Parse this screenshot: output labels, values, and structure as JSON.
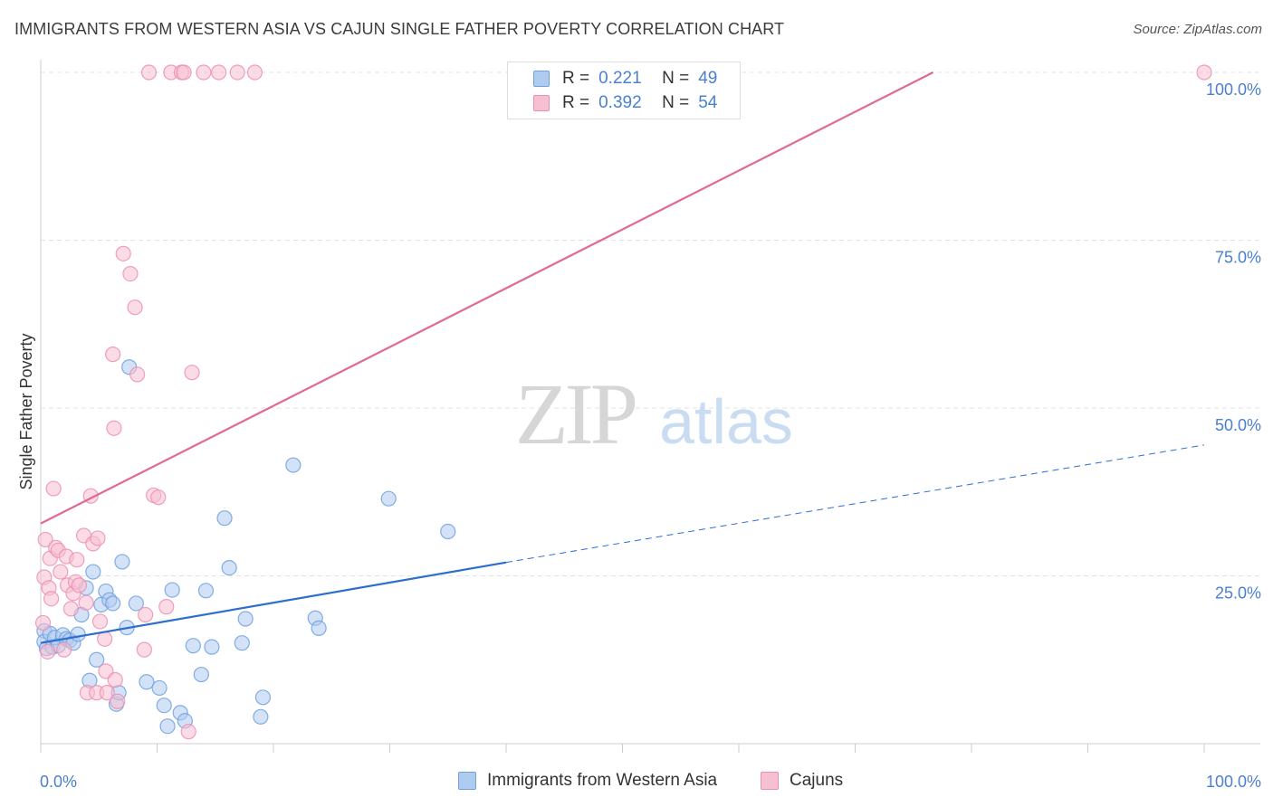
{
  "title": "IMMIGRANTS FROM WESTERN ASIA VS CAJUN SINGLE FATHER POVERTY CORRELATION CHART",
  "source": "Source: ZipAtlas.com",
  "watermark": {
    "zip": "ZIP",
    "atlas": "atlas"
  },
  "legend_top": [
    {
      "r_label": "R =",
      "r_value": "0.221",
      "n_label": "N =",
      "n_value": "49"
    },
    {
      "r_label": "R =",
      "r_value": "0.392",
      "n_label": "N =",
      "n_value": "54"
    }
  ],
  "chart_data": {
    "type": "scatter",
    "title": "IMMIGRANTS FROM WESTERN ASIA VS CAJUN SINGLE FATHER POVERTY CORRELATION CHART",
    "xlabel": "",
    "ylabel": "Single Father Poverty",
    "xlim": [
      0,
      100
    ],
    "ylim": [
      0,
      100
    ],
    "x_tick_labels": [
      "0.0%",
      "100.0%"
    ],
    "y_ticks": [
      25,
      50,
      75,
      100
    ],
    "y_tick_labels": [
      "25.0%",
      "50.0%",
      "75.0%",
      "100.0%"
    ],
    "legend_position": "bottom",
    "series": [
      {
        "name": "Immigrants from Western Asia",
        "color": "#6fa0e0",
        "fill": "#aecbf0",
        "line_color": "#2e6fcc",
        "r": 0.221,
        "n": 49,
        "trend": {
          "x0": 0,
          "y0": 15.0,
          "x1": 40,
          "y1": 27.0,
          "dash_x1": 100,
          "dash_y1": 44.5
        },
        "points": [
          [
            0.3,
            16.8
          ],
          [
            0.3,
            15.2
          ],
          [
            0.5,
            14.2
          ],
          [
            0.8,
            16.4
          ],
          [
            1.0,
            14.4
          ],
          [
            1.2,
            15.8
          ],
          [
            1.5,
            14.6
          ],
          [
            1.9,
            16.2
          ],
          [
            2.2,
            15.6
          ],
          [
            2.5,
            15.4
          ],
          [
            2.8,
            15.0
          ],
          [
            3.2,
            16.3
          ],
          [
            3.5,
            19.2
          ],
          [
            3.9,
            23.2
          ],
          [
            4.2,
            9.4
          ],
          [
            4.5,
            25.6
          ],
          [
            4.8,
            12.5
          ],
          [
            5.2,
            20.7
          ],
          [
            5.6,
            22.7
          ],
          [
            5.9,
            21.4
          ],
          [
            6.2,
            20.9
          ],
          [
            6.5,
            5.9
          ],
          [
            6.7,
            7.6
          ],
          [
            7.0,
            27.1
          ],
          [
            7.4,
            17.3
          ],
          [
            7.6,
            56.1
          ],
          [
            8.2,
            20.9
          ],
          [
            9.1,
            9.2
          ],
          [
            10.2,
            8.3
          ],
          [
            10.6,
            5.7
          ],
          [
            10.9,
            2.6
          ],
          [
            11.3,
            22.9
          ],
          [
            12.0,
            4.6
          ],
          [
            12.4,
            3.4
          ],
          [
            13.1,
            14.6
          ],
          [
            13.8,
            10.3
          ],
          [
            14.2,
            22.8
          ],
          [
            14.7,
            14.4
          ],
          [
            15.8,
            33.6
          ],
          [
            16.2,
            26.2
          ],
          [
            17.3,
            15.0
          ],
          [
            17.6,
            18.6
          ],
          [
            18.9,
            4.0
          ],
          [
            19.1,
            6.9
          ],
          [
            21.7,
            41.5
          ],
          [
            23.6,
            18.7
          ],
          [
            23.9,
            17.2
          ],
          [
            29.9,
            36.5
          ],
          [
            35.0,
            31.6
          ]
        ]
      },
      {
        "name": "Cajuns",
        "color": "#ec8fb0",
        "fill": "#f7bfd2",
        "line_color": "#e06a93",
        "r": 0.392,
        "n": 54,
        "trend": {
          "x0": 0,
          "y0": 32.8,
          "x1": 76.7,
          "y1": 100.0
        },
        "points": [
          [
            0.2,
            18.0
          ],
          [
            0.3,
            24.8
          ],
          [
            0.4,
            30.4
          ],
          [
            0.6,
            13.7
          ],
          [
            0.7,
            23.2
          ],
          [
            0.8,
            27.6
          ],
          [
            0.9,
            21.6
          ],
          [
            1.1,
            38.0
          ],
          [
            1.3,
            29.2
          ],
          [
            1.5,
            28.8
          ],
          [
            1.7,
            25.6
          ],
          [
            2.0,
            14.0
          ],
          [
            2.2,
            27.9
          ],
          [
            2.3,
            23.6
          ],
          [
            2.6,
            20.1
          ],
          [
            2.8,
            22.4
          ],
          [
            3.0,
            24.1
          ],
          [
            3.1,
            27.4
          ],
          [
            3.3,
            23.6
          ],
          [
            3.7,
            31.0
          ],
          [
            3.9,
            21.0
          ],
          [
            4.0,
            7.6
          ],
          [
            4.3,
            36.9
          ],
          [
            4.5,
            29.8
          ],
          [
            4.8,
            7.6
          ],
          [
            4.9,
            30.6
          ],
          [
            5.1,
            18.2
          ],
          [
            5.5,
            15.6
          ],
          [
            5.6,
            10.8
          ],
          [
            5.7,
            7.6
          ],
          [
            6.2,
            58.0
          ],
          [
            6.3,
            47.0
          ],
          [
            6.4,
            9.5
          ],
          [
            6.6,
            6.3
          ],
          [
            7.1,
            73.0
          ],
          [
            7.7,
            70.0
          ],
          [
            8.1,
            65.0
          ],
          [
            8.3,
            55.0
          ],
          [
            8.9,
            14.0
          ],
          [
            9.0,
            19.2
          ],
          [
            9.3,
            100.0
          ],
          [
            9.7,
            37.0
          ],
          [
            10.1,
            36.7
          ],
          [
            10.8,
            20.4
          ],
          [
            11.2,
            100.0
          ],
          [
            12.1,
            100.0
          ],
          [
            12.3,
            100.0
          ],
          [
            12.7,
            1.8
          ],
          [
            13.0,
            55.3
          ],
          [
            14.0,
            100.0
          ],
          [
            15.3,
            100.0
          ],
          [
            16.9,
            100.0
          ],
          [
            18.4,
            100.0
          ],
          [
            100.0,
            100.0
          ]
        ]
      }
    ]
  }
}
